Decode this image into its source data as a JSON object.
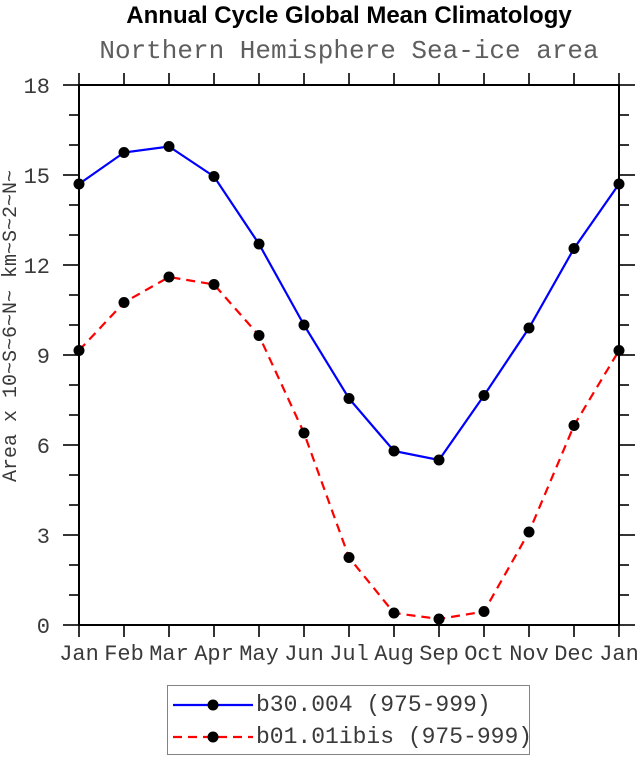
{
  "title": "Annual Cycle Global Mean Climatology",
  "subtitle": "Northern Hemisphere Sea-ice area",
  "colors": {
    "title": "#000000",
    "subtitle": "#5e5e5e",
    "axis": "#000000",
    "tick_label": "#3a3a3a",
    "series_blue": "#0000ff",
    "series_red": "#ff0000",
    "marker": "#000000",
    "legend_border": "#848484",
    "legend_text": "#3a3a3a",
    "background": "#ffffff"
  },
  "chart_data": {
    "type": "line",
    "title": "Annual Cycle Global Mean Climatology",
    "subtitle": "Northern Hemisphere Sea-ice area",
    "xlabel": "",
    "ylabel": "Area x 10~S~6~N~ km~S~2~N~",
    "categories": [
      "Jan",
      "Feb",
      "Mar",
      "Apr",
      "May",
      "Jun",
      "Jul",
      "Aug",
      "Sep",
      "Oct",
      "Nov",
      "Dec",
      "Jan"
    ],
    "series": [
      {
        "name": "b30.004 (975-999)",
        "color": "#0000ff",
        "line_style": "solid",
        "marker": "filled-circle",
        "marker_color": "#000000",
        "values": [
          14.7,
          15.75,
          15.95,
          14.95,
          12.7,
          10.0,
          7.55,
          5.8,
          5.5,
          7.65,
          9.9,
          12.55,
          14.7
        ]
      },
      {
        "name": "b01.01ibis (975-999)",
        "color": "#ff0000",
        "line_style": "dashed",
        "marker": "filled-circle",
        "marker_color": "#000000",
        "values": [
          9.15,
          10.75,
          11.6,
          11.35,
          9.65,
          6.4,
          2.25,
          0.4,
          0.2,
          0.45,
          3.1,
          6.65,
          9.15
        ]
      }
    ],
    "ylim": [
      0,
      18
    ],
    "yticks_major": [
      0,
      3,
      6,
      9,
      12,
      15,
      18
    ],
    "ytick_minor_interval": 1,
    "grid": false,
    "legend_position": "bottom"
  }
}
